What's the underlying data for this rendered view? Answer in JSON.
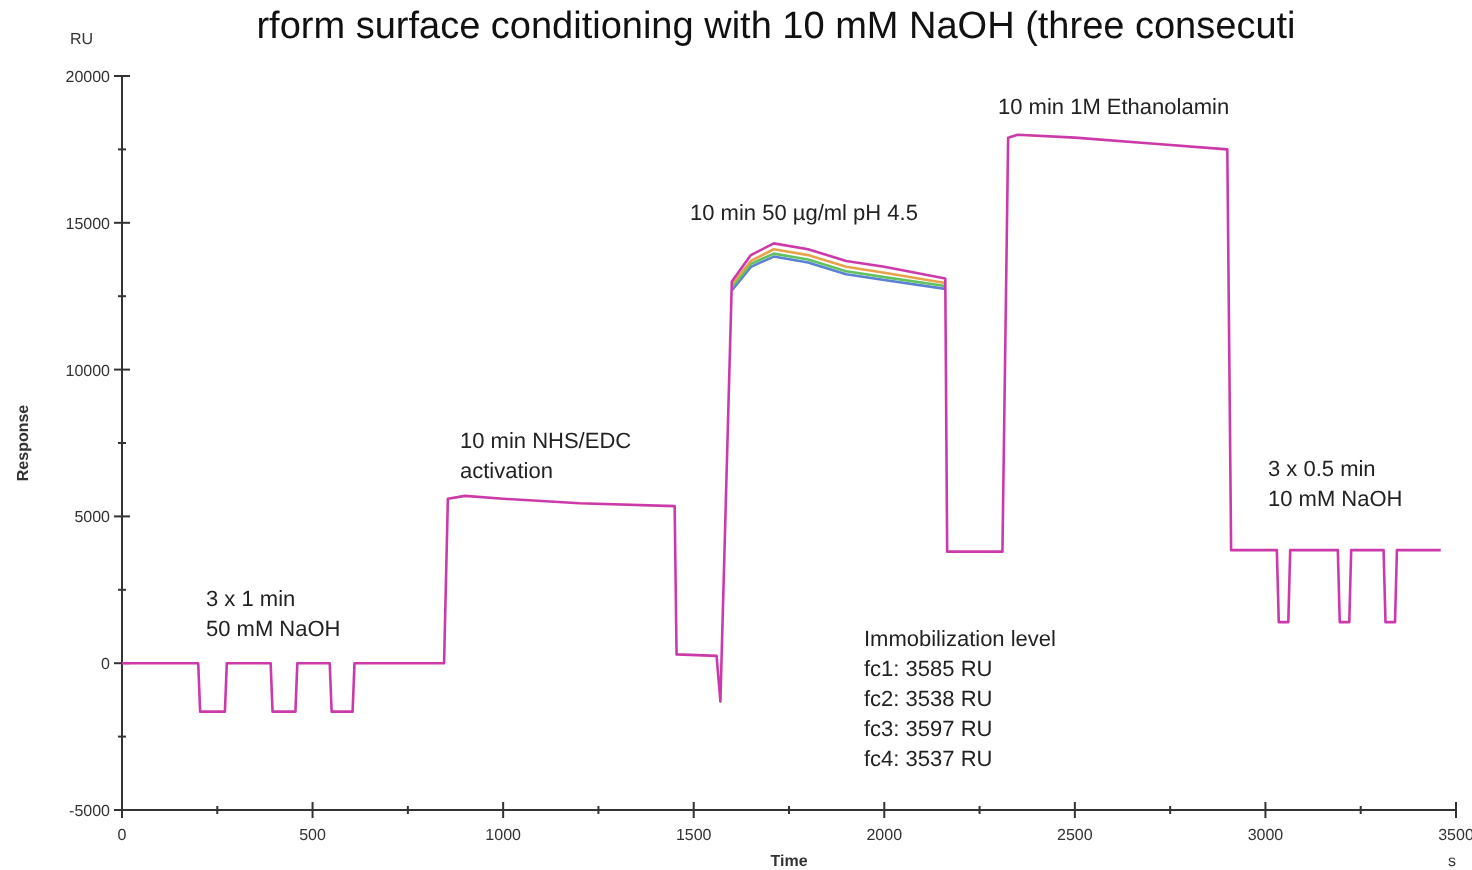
{
  "chart_data": {
    "type": "line",
    "title": "rform surface conditioning with 10 mM NaOH (three consecuti",
    "xlabel": "Time",
    "ylabel": "Response",
    "annotations": [
      "RU",
      "s",
      "3 x 1 min\n50 mM NaOH",
      "10 min NHS/EDC\nactivation",
      "10 min 50 µg/ml pH 4.5",
      "10 min 1M Ethanolamin",
      "3 x 0.5 min\n10 mM NaOH",
      "Immobilization level\nfc1: 3585 RU\nfc2: 3538 RU\nfc3: 3597 RU\nfc4: 3537 RU"
    ],
    "x": [
      0,
      200,
      205,
      270,
      275,
      390,
      395,
      455,
      460,
      545,
      550,
      605,
      610,
      845,
      855,
      900,
      1000,
      1200,
      1450,
      1455,
      1560,
      1570,
      1600,
      1650,
      1710,
      1800,
      1900,
      2000,
      2160,
      2165,
      2310,
      2325,
      2350,
      2500,
      2700,
      2900,
      2910,
      3030,
      3035,
      3060,
      3065,
      3190,
      3195,
      3220,
      3225,
      3310,
      3315,
      3340,
      3345,
      3460
    ],
    "series": [
      {
        "color": "#5a82d2",
        "values": [
          null,
          null,
          null,
          null,
          null,
          null,
          null,
          null,
          null,
          null,
          null,
          null,
          null,
          null,
          null,
          null,
          null,
          null,
          null,
          null,
          null,
          null,
          12700,
          13500,
          13850,
          13650,
          13250,
          13050,
          12750,
          null,
          null,
          null,
          null,
          null,
          null,
          null,
          null,
          null,
          null,
          null,
          null,
          null,
          null,
          null,
          null,
          null,
          null,
          null,
          null,
          null
        ]
      },
      {
        "color": "#62c262",
        "values": [
          null,
          null,
          null,
          null,
          null,
          null,
          null,
          null,
          null,
          null,
          null,
          null,
          null,
          null,
          null,
          null,
          null,
          null,
          null,
          null,
          null,
          null,
          12800,
          13600,
          13950,
          13750,
          13350,
          13150,
          12850,
          null,
          null,
          null,
          null,
          null,
          null,
          null,
          null,
          null,
          null,
          null,
          null,
          null,
          null,
          null,
          null,
          null,
          null,
          null,
          null,
          null
        ]
      },
      {
        "color": "#e8a24a",
        "values": [
          null,
          null,
          null,
          null,
          null,
          null,
          null,
          null,
          null,
          null,
          null,
          null,
          null,
          null,
          null,
          null,
          null,
          null,
          null,
          null,
          null,
          null,
          12900,
          13700,
          14100,
          13900,
          13500,
          13300,
          12950,
          null,
          null,
          null,
          null,
          null,
          null,
          null,
          null,
          null,
          null,
          null,
          null,
          null,
          null,
          null,
          null,
          null,
          null,
          null,
          null,
          null
        ]
      },
      {
        "color": "#cc3aaa",
        "values": [
          0,
          0,
          -1650,
          -1650,
          0,
          0,
          -1650,
          -1650,
          0,
          0,
          -1650,
          -1650,
          0,
          0,
          5600,
          5700,
          5600,
          5450,
          5350,
          300,
          250,
          -1300,
          13000,
          13900,
          14300,
          14100,
          13700,
          13500,
          13100,
          3800,
          3800,
          17900,
          18000,
          17900,
          17700,
          17500,
          3850,
          3850,
          1400,
          1400,
          3850,
          3850,
          1400,
          1400,
          3850,
          3850,
          1400,
          1400,
          3850,
          3850
        ]
      }
    ],
    "xlim": [
      0,
      3500
    ],
    "xticks": [
      0,
      {
        "value": 250,
        "label": null
      },
      500,
      {
        "value": 750,
        "label": null
      },
      1000,
      {
        "value": 1250,
        "label": null
      },
      1500,
      {
        "value": 1750,
        "label": null
      },
      2000,
      {
        "value": 2250,
        "label": null
      },
      2500,
      {
        "value": 2750,
        "label": null
      },
      3000,
      {
        "value": 3250,
        "label": null
      },
      3500
    ],
    "ylim": [
      -5000,
      20000
    ],
    "yticks": [
      -5000,
      {
        "value": -2500,
        "label": null
      },
      0,
      {
        "value": 2500,
        "label": null
      },
      5000,
      {
        "value": 7500,
        "label": null
      },
      10000,
      {
        "value": 12500,
        "label": null
      },
      15000,
      {
        "value": 17500,
        "label": null
      },
      20000
    ],
    "line_style": "solid",
    "marker": "none",
    "grid": false
  }
}
